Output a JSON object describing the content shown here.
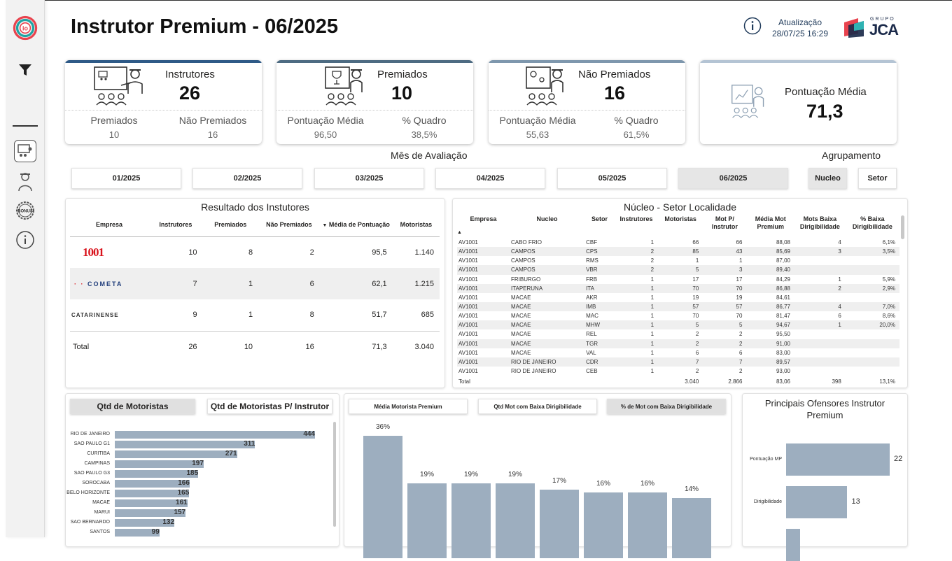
{
  "header": {
    "title": "Instrutor Premium - 06/2025",
    "update_label": "Atualização",
    "update_value": "28/07/25 16:29",
    "logo_small": "GRUPO",
    "logo_big": "JCA"
  },
  "sidebar": {
    "icons": [
      "logo-icon",
      "filter-icon",
      "classroom-icon",
      "instructor-icon",
      "bonus-icon",
      "info-icon"
    ],
    "bonus_text": "BONUS"
  },
  "cards": [
    {
      "title": "Instrutores",
      "value": "26",
      "sub1_label": "Premiados",
      "sub1_value": "10",
      "sub2_label": "Não Premiados",
      "sub2_value": "16"
    },
    {
      "title": "Premiados",
      "value": "10",
      "sub1_label": "Pontuação Média",
      "sub1_value": "96,50",
      "sub2_label": "% Quadro",
      "sub2_value": "38,5%"
    },
    {
      "title": "Não Premiados",
      "value": "16",
      "sub1_label": "Pontuação Média",
      "sub1_value": "55,63",
      "sub2_label": "% Quadro",
      "sub2_value": "61,5%"
    },
    {
      "title": "Pontuação Média",
      "value": "71,3"
    }
  ],
  "month_filter": {
    "label": "Mês de Avaliação",
    "months": [
      "01/2025",
      "02/2025",
      "03/2025",
      "04/2025",
      "05/2025",
      "06/2025"
    ],
    "selected": "06/2025"
  },
  "grouping": {
    "label": "Agrupamento",
    "options": [
      "Nucleo",
      "Setor"
    ],
    "selected": "Nucleo"
  },
  "result_table": {
    "title": "Resultado dos Instutores",
    "headers": [
      "Empresa",
      "Instrutores",
      "Premiados",
      "Não Premiados",
      "Média de Pontuação",
      "Motoristas"
    ],
    "rows": [
      {
        "empresa": "1001",
        "instrutores": "10",
        "premiados": "8",
        "nao_premiados": "2",
        "media": "95,5",
        "motoristas": "1.140"
      },
      {
        "empresa": "COMETA",
        "instrutores": "7",
        "premiados": "1",
        "nao_premiados": "6",
        "media": "62,1",
        "motoristas": "1.215"
      },
      {
        "empresa": "CATARINENSE",
        "instrutores": "9",
        "premiados": "1",
        "nao_premiados": "8",
        "media": "51,7",
        "motoristas": "685"
      }
    ],
    "total": {
      "label": "Total",
      "instrutores": "26",
      "premiados": "10",
      "nao_premiados": "16",
      "media": "71,3",
      "motoristas": "3.040"
    }
  },
  "nucleo_table": {
    "title": "Núcleo - Setor Localidade",
    "headers": [
      "Empresa",
      "Nucleo",
      "Setor",
      "Instrutores",
      "Motoristas",
      "Mot P/ Instrutor",
      "Média Mot Premium",
      "Mots Baixa Dirigibilidade",
      "% Baixa Dirigibilidade"
    ],
    "rows": [
      [
        "AV1001",
        "CABO FRIO",
        "CBF",
        "1",
        "66",
        "66",
        "88,08",
        "4",
        "6,1%"
      ],
      [
        "AV1001",
        "CAMPOS",
        "CPS",
        "2",
        "85",
        "43",
        "85,69",
        "3",
        "3,5%"
      ],
      [
        "AV1001",
        "CAMPOS",
        "RMS",
        "2",
        "1",
        "1",
        "87,00",
        "",
        ""
      ],
      [
        "AV1001",
        "CAMPOS",
        "VBR",
        "2",
        "5",
        "3",
        "89,40",
        "",
        ""
      ],
      [
        "AV1001",
        "FRIBURGO",
        "FRB",
        "1",
        "17",
        "17",
        "84,29",
        "1",
        "5,9%"
      ],
      [
        "AV1001",
        "ITAPERUNA",
        "ITA",
        "1",
        "70",
        "70",
        "86,88",
        "2",
        "2,9%"
      ],
      [
        "AV1001",
        "MACAE",
        "AKR",
        "1",
        "19",
        "19",
        "84,61",
        "",
        ""
      ],
      [
        "AV1001",
        "MACAE",
        "IMB",
        "1",
        "57",
        "57",
        "86,77",
        "4",
        "7,0%"
      ],
      [
        "AV1001",
        "MACAE",
        "MAC",
        "1",
        "70",
        "70",
        "81,47",
        "6",
        "8,6%"
      ],
      [
        "AV1001",
        "MACAE",
        "MHW",
        "1",
        "5",
        "5",
        "94,67",
        "1",
        "20,0%"
      ],
      [
        "AV1001",
        "MACAE",
        "REL",
        "1",
        "2",
        "2",
        "95,50",
        "",
        ""
      ],
      [
        "AV1001",
        "MACAE",
        "TGR",
        "1",
        "2",
        "2",
        "91,00",
        "",
        ""
      ],
      [
        "AV1001",
        "MACAE",
        "VAL",
        "1",
        "6",
        "6",
        "83,00",
        "",
        ""
      ],
      [
        "AV1001",
        "RIO DE JANEIRO",
        "CDR",
        "1",
        "7",
        "7",
        "89,57",
        "",
        ""
      ],
      [
        "AV1001",
        "RIO DE JANEIRO",
        "CEB",
        "1",
        "2",
        "2",
        "93,00",
        "",
        ""
      ]
    ],
    "total": [
      "Total",
      "",
      "",
      "",
      "3.040",
      "2.866",
      "83,06",
      "398",
      "13,1%"
    ]
  },
  "motoristas_chart": {
    "tabs": [
      "Qtd de Motoristas",
      "Qtd de Motoristas P/ Instrutor"
    ],
    "selected": "Qtd de Motoristas",
    "chart_data": {
      "type": "bar",
      "orientation": "horizontal",
      "categories": [
        "RIO DE JANEIRO",
        "SAO PAULO G1",
        "CURITIBA",
        "CAMPINAS",
        "SAO PAULO G3",
        "SOROCABA",
        "BELO HORIZONTE",
        "MACAE",
        "MARUI",
        "SAO BERNARDO",
        "SANTOS"
      ],
      "values": [
        444,
        311,
        271,
        197,
        185,
        166,
        165,
        161,
        157,
        132,
        99
      ]
    }
  },
  "pct_chart": {
    "tabs": [
      "Média Motorista Premium",
      "Qtd Mot com Baixa Dirigibilidade",
      "% de Mot com Baixa Dirigibilidade"
    ],
    "selected": "% de Mot com Baixa Dirigibilidade",
    "chart_data": {
      "type": "bar",
      "labels": [
        "36%",
        "19%",
        "19%",
        "19%",
        "17%",
        "16%",
        "16%",
        "14%"
      ],
      "values": [
        36,
        19,
        19,
        19,
        17,
        16,
        16,
        14
      ]
    }
  },
  "ofensores": {
    "title": "Principais Ofensores Instrutor Premium",
    "chart_data": {
      "type": "bar",
      "orientation": "horizontal",
      "categories": [
        "Pontuação MP",
        "Dirigibilidade",
        ""
      ],
      "values": [
        22,
        13,
        3
      ],
      "labels": [
        "22",
        "13",
        ""
      ]
    }
  },
  "colors": {
    "accent": "#2e5a87",
    "bar": "#9daebf",
    "card2_bar": "#4d6b82",
    "card3_bar": "#7e97ad",
    "card4_bar": "#b4c4d4"
  }
}
